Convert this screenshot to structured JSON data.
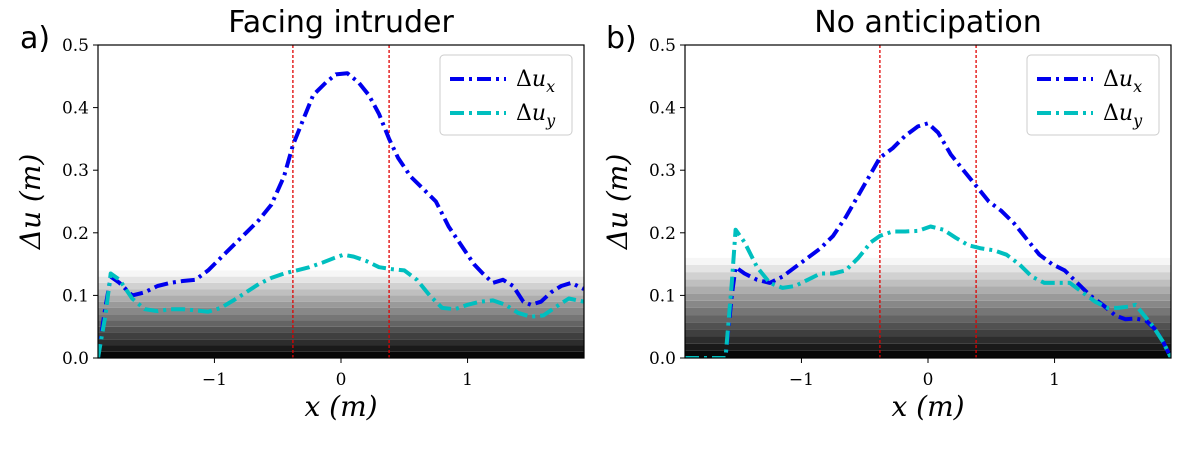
{
  "chart_data": [
    {
      "type": "line",
      "panel_label": "a)",
      "title": "Facing intruder",
      "xlabel": "x (m)",
      "ylabel": "Δu (m)",
      "xlim": [
        -1.92,
        1.92
      ],
      "ylim": [
        0.0,
        0.5
      ],
      "xticks": [
        -1,
        0,
        1
      ],
      "xtick_labels": [
        "−1",
        "0",
        "1"
      ],
      "yticks": [
        0.0,
        0.1,
        0.2,
        0.3,
        0.4,
        0.5
      ],
      "ytick_labels": [
        "0.0",
        "0.1",
        "0.2",
        "0.3",
        "0.4",
        "0.5"
      ],
      "vlines": [
        -0.38,
        0.38
      ],
      "vline_color": "#e00000",
      "background_gradient_top": 0.14,
      "legend_position": "top-right",
      "series": [
        {
          "name": "Δu_x",
          "color": "#0000ee",
          "points": [
            [
              -1.92,
              0.0
            ],
            [
              -1.87,
              0.07
            ],
            [
              -1.82,
              0.13
            ],
            [
              -1.75,
              0.12
            ],
            [
              -1.65,
              0.1
            ],
            [
              -1.55,
              0.105
            ],
            [
              -1.45,
              0.115
            ],
            [
              -1.35,
              0.12
            ],
            [
              -1.25,
              0.123
            ],
            [
              -1.15,
              0.125
            ],
            [
              -1.05,
              0.14
            ],
            [
              -0.95,
              0.16
            ],
            [
              -0.85,
              0.18
            ],
            [
              -0.75,
              0.2
            ],
            [
              -0.65,
              0.22
            ],
            [
              -0.55,
              0.245
            ],
            [
              -0.45,
              0.29
            ],
            [
              -0.38,
              0.34
            ],
            [
              -0.3,
              0.38
            ],
            [
              -0.22,
              0.42
            ],
            [
              -0.12,
              0.44
            ],
            [
              -0.04,
              0.453
            ],
            [
              0.05,
              0.455
            ],
            [
              0.14,
              0.44
            ],
            [
              0.22,
              0.42
            ],
            [
              0.3,
              0.39
            ],
            [
              0.38,
              0.35
            ],
            [
              0.45,
              0.32
            ],
            [
              0.55,
              0.29
            ],
            [
              0.65,
              0.27
            ],
            [
              0.75,
              0.25
            ],
            [
              0.85,
              0.21
            ],
            [
              0.95,
              0.18
            ],
            [
              1.05,
              0.15
            ],
            [
              1.12,
              0.135
            ],
            [
              1.2,
              0.12
            ],
            [
              1.28,
              0.125
            ],
            [
              1.36,
              0.115
            ],
            [
              1.44,
              0.09
            ],
            [
              1.5,
              0.085
            ],
            [
              1.58,
              0.09
            ],
            [
              1.66,
              0.105
            ],
            [
              1.74,
              0.115
            ],
            [
              1.82,
              0.12
            ],
            [
              1.92,
              0.11
            ]
          ]
        },
        {
          "name": "Δu_y",
          "color": "#00bfbf",
          "points": [
            [
              -1.92,
              0.0
            ],
            [
              -1.86,
              0.07
            ],
            [
              -1.82,
              0.135
            ],
            [
              -1.75,
              0.125
            ],
            [
              -1.65,
              0.095
            ],
            [
              -1.55,
              0.078
            ],
            [
              -1.45,
              0.075
            ],
            [
              -1.35,
              0.078
            ],
            [
              -1.25,
              0.078
            ],
            [
              -1.15,
              0.076
            ],
            [
              -1.05,
              0.074
            ],
            [
              -0.95,
              0.08
            ],
            [
              -0.85,
              0.092
            ],
            [
              -0.75,
              0.105
            ],
            [
              -0.65,
              0.118
            ],
            [
              -0.55,
              0.128
            ],
            [
              -0.45,
              0.135
            ],
            [
              -0.35,
              0.14
            ],
            [
              -0.25,
              0.145
            ],
            [
              -0.15,
              0.152
            ],
            [
              -0.05,
              0.16
            ],
            [
              0.02,
              0.165
            ],
            [
              0.1,
              0.162
            ],
            [
              0.2,
              0.155
            ],
            [
              0.3,
              0.145
            ],
            [
              0.4,
              0.142
            ],
            [
              0.5,
              0.14
            ],
            [
              0.6,
              0.125
            ],
            [
              0.7,
              0.1
            ],
            [
              0.8,
              0.08
            ],
            [
              0.9,
              0.078
            ],
            [
              1.0,
              0.085
            ],
            [
              1.1,
              0.09
            ],
            [
              1.2,
              0.092
            ],
            [
              1.3,
              0.085
            ],
            [
              1.4,
              0.072
            ],
            [
              1.5,
              0.066
            ],
            [
              1.6,
              0.068
            ],
            [
              1.7,
              0.082
            ],
            [
              1.8,
              0.095
            ],
            [
              1.92,
              0.09
            ]
          ]
        }
      ]
    },
    {
      "type": "line",
      "panel_label": "b)",
      "title": "No anticipation",
      "xlabel": "x (m)",
      "ylabel": "Δu (m)",
      "xlim": [
        -1.92,
        1.92
      ],
      "ylim": [
        0.0,
        0.5
      ],
      "xticks": [
        -1,
        0,
        1
      ],
      "xtick_labels": [
        "−1",
        "0",
        "1"
      ],
      "yticks": [
        0.0,
        0.1,
        0.2,
        0.3,
        0.4,
        0.5
      ],
      "ytick_labels": [
        "0.0",
        "0.1",
        "0.2",
        "0.3",
        "0.4",
        "0.5"
      ],
      "vlines": [
        -0.38,
        0.38
      ],
      "vline_color": "#e00000",
      "background_gradient_top": 0.16,
      "legend_position": "top-right",
      "series": [
        {
          "name": "Δu_x",
          "color": "#0000ee",
          "points": [
            [
              -1.92,
              0.0
            ],
            [
              -1.7,
              0.0
            ],
            [
              -1.6,
              0.0
            ],
            [
              -1.55,
              0.1
            ],
            [
              -1.52,
              0.145
            ],
            [
              -1.45,
              0.135
            ],
            [
              -1.35,
              0.125
            ],
            [
              -1.25,
              0.12
            ],
            [
              -1.15,
              0.13
            ],
            [
              -1.05,
              0.145
            ],
            [
              -0.95,
              0.16
            ],
            [
              -0.85,
              0.175
            ],
            [
              -0.75,
              0.195
            ],
            [
              -0.65,
              0.225
            ],
            [
              -0.55,
              0.26
            ],
            [
              -0.45,
              0.295
            ],
            [
              -0.38,
              0.32
            ],
            [
              -0.28,
              0.335
            ],
            [
              -0.18,
              0.355
            ],
            [
              -0.08,
              0.37
            ],
            [
              0.0,
              0.375
            ],
            [
              0.08,
              0.36
            ],
            [
              0.18,
              0.325
            ],
            [
              0.28,
              0.3
            ],
            [
              0.38,
              0.275
            ],
            [
              0.48,
              0.25
            ],
            [
              0.58,
              0.235
            ],
            [
              0.68,
              0.215
            ],
            [
              0.78,
              0.19
            ],
            [
              0.88,
              0.165
            ],
            [
              0.98,
              0.15
            ],
            [
              1.08,
              0.14
            ],
            [
              1.18,
              0.12
            ],
            [
              1.28,
              0.1
            ],
            [
              1.38,
              0.085
            ],
            [
              1.48,
              0.068
            ],
            [
              1.56,
              0.062
            ],
            [
              1.64,
              0.063
            ],
            [
              1.72,
              0.06
            ],
            [
              1.8,
              0.045
            ],
            [
              1.86,
              0.025
            ],
            [
              1.92,
              0.0
            ]
          ]
        },
        {
          "name": "Δu_y",
          "color": "#00bfbf",
          "points": [
            [
              -1.92,
              0.0
            ],
            [
              -1.7,
              0.0
            ],
            [
              -1.6,
              0.0
            ],
            [
              -1.55,
              0.12
            ],
            [
              -1.52,
              0.205
            ],
            [
              -1.45,
              0.185
            ],
            [
              -1.35,
              0.145
            ],
            [
              -1.25,
              0.12
            ],
            [
              -1.15,
              0.112
            ],
            [
              -1.05,
              0.115
            ],
            [
              -0.95,
              0.125
            ],
            [
              -0.85,
              0.135
            ],
            [
              -0.75,
              0.135
            ],
            [
              -0.65,
              0.14
            ],
            [
              -0.55,
              0.16
            ],
            [
              -0.45,
              0.185
            ],
            [
              -0.38,
              0.195
            ],
            [
              -0.28,
              0.202
            ],
            [
              -0.18,
              0.202
            ],
            [
              -0.08,
              0.203
            ],
            [
              0.02,
              0.21
            ],
            [
              0.12,
              0.205
            ],
            [
              0.22,
              0.192
            ],
            [
              0.32,
              0.18
            ],
            [
              0.42,
              0.175
            ],
            [
              0.52,
              0.172
            ],
            [
              0.62,
              0.165
            ],
            [
              0.72,
              0.15
            ],
            [
              0.82,
              0.13
            ],
            [
              0.92,
              0.12
            ],
            [
              1.02,
              0.12
            ],
            [
              1.12,
              0.12
            ],
            [
              1.22,
              0.105
            ],
            [
              1.32,
              0.09
            ],
            [
              1.42,
              0.08
            ],
            [
              1.5,
              0.08
            ],
            [
              1.58,
              0.082
            ],
            [
              1.64,
              0.085
            ],
            [
              1.7,
              0.07
            ],
            [
              1.78,
              0.05
            ],
            [
              1.86,
              0.025
            ],
            [
              1.92,
              0.0
            ]
          ]
        }
      ]
    }
  ]
}
